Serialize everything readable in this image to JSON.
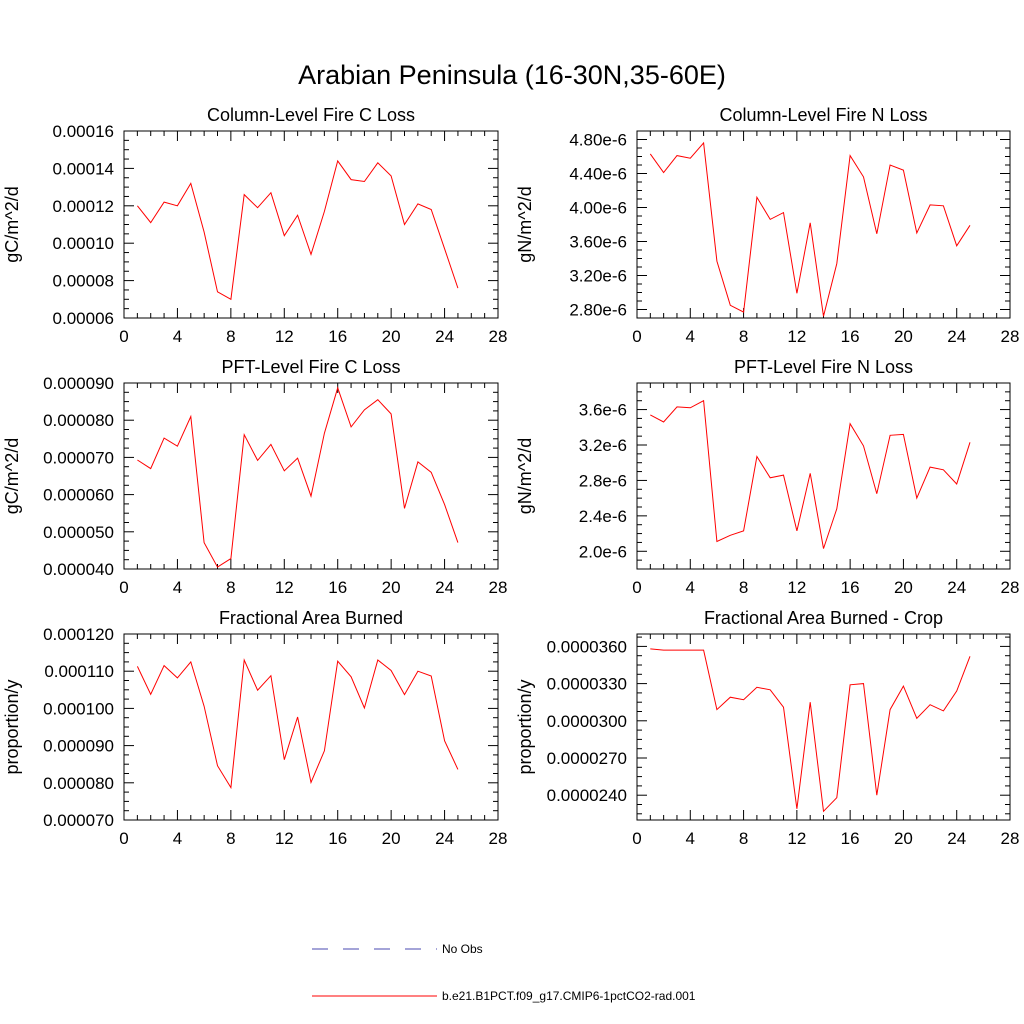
{
  "figure": {
    "title": "Arabian Peninsula (16-30N,35-60E)"
  },
  "colors": {
    "series": "#ff0000",
    "obs": "#4a4ab0",
    "axis": "#000000"
  },
  "legend": {
    "entries": [
      {
        "label": "No Obs",
        "style": "dashed",
        "color": "#4a4ab0"
      },
      {
        "label": "b.e21.B1PCT.f09_g17.CMIP6-1pctCO2-rad.001",
        "style": "solid",
        "color": "#ff0000"
      }
    ]
  },
  "chart_data": [
    {
      "type": "line",
      "title": "Column-Level Fire C Loss",
      "xlabel": "",
      "ylabel": "gC/m^2/d",
      "xlim": [
        0,
        28
      ],
      "ylim": [
        6e-05,
        0.00016
      ],
      "xticks": [
        "0",
        "4",
        "8",
        "12",
        "16",
        "20",
        "24",
        "28"
      ],
      "yticks": [
        "0.00006",
        "0.00008",
        "0.00010",
        "0.00012",
        "0.00014",
        "0.00016"
      ],
      "x": [
        1,
        2,
        3,
        4,
        5,
        6,
        7,
        8,
        9,
        10,
        11,
        12,
        13,
        14,
        15,
        16,
        17,
        18,
        19,
        20,
        21,
        22,
        23,
        24,
        25
      ],
      "series": [
        {
          "name": "b.e21.B1PCT.f09_g17.CMIP6-1pctCO2-rad.001",
          "values": [
            0.00012,
            0.000111,
            0.000122,
            0.00012,
            0.000132,
            0.000106,
            7.4e-05,
            7e-05,
            0.000126,
            0.000119,
            0.000127,
            0.000104,
            0.000115,
            9.4e-05,
            0.000117,
            0.000144,
            0.000134,
            0.000133,
            0.000143,
            0.000136,
            0.00011,
            0.000121,
            0.000118,
            9.7e-05,
            7.6e-05
          ]
        }
      ]
    },
    {
      "type": "line",
      "title": "Column-Level Fire N Loss",
      "xlabel": "",
      "ylabel": "gN/m^2/d",
      "xlim": [
        0,
        28
      ],
      "ylim": [
        2.7e-06,
        4.9e-06
      ],
      "xticks": [
        "0",
        "4",
        "8",
        "12",
        "16",
        "20",
        "24",
        "28"
      ],
      "yticks": [
        "2.80e-6",
        "3.20e-6",
        "3.60e-6",
        "4.00e-6",
        "4.40e-6",
        "4.80e-6"
      ],
      "ytick_values": [
        2.8e-06,
        3.2e-06,
        3.6e-06,
        4e-06,
        4.4e-06,
        4.8e-06
      ],
      "x": [
        1,
        2,
        3,
        4,
        5,
        6,
        7,
        8,
        9,
        10,
        11,
        12,
        13,
        14,
        15,
        16,
        17,
        18,
        19,
        20,
        21,
        22,
        23,
        24,
        25
      ],
      "series": [
        {
          "name": "b.e21.B1PCT.f09_g17.CMIP6-1pctCO2-rad.001",
          "values": [
            4.63e-06,
            4.41e-06,
            4.61e-06,
            4.58e-06,
            4.76e-06,
            3.37e-06,
            2.85e-06,
            2.77e-06,
            4.12e-06,
            3.86e-06,
            3.94e-06,
            2.99e-06,
            3.82e-06,
            2.72e-06,
            3.34e-06,
            4.61e-06,
            4.36e-06,
            3.69e-06,
            4.5e-06,
            4.44e-06,
            3.7e-06,
            4.03e-06,
            4.02e-06,
            3.55e-06,
            3.79e-06
          ]
        }
      ]
    },
    {
      "type": "line",
      "title": "PFT-Level Fire C Loss",
      "xlabel": "",
      "ylabel": "gC/m^2/d",
      "xlim": [
        0,
        28
      ],
      "ylim": [
        4e-05,
        9e-05
      ],
      "xticks": [
        "0",
        "4",
        "8",
        "12",
        "16",
        "20",
        "24",
        "28"
      ],
      "yticks": [
        "0.000040",
        "0.000050",
        "0.000060",
        "0.000070",
        "0.000080",
        "0.000090"
      ],
      "x": [
        1,
        2,
        3,
        4,
        5,
        6,
        7,
        8,
        9,
        10,
        11,
        12,
        13,
        14,
        15,
        16,
        17,
        18,
        19,
        20,
        21,
        22,
        23,
        24,
        25
      ],
      "series": [
        {
          "name": "b.e21.B1PCT.f09_g17.CMIP6-1pctCO2-rad.001",
          "values": [
            6.93e-05,
            6.7e-05,
            7.52e-05,
            7.3e-05,
            8.1e-05,
            4.71e-05,
            4.05e-05,
            4.28e-05,
            7.61e-05,
            6.92e-05,
            7.35e-05,
            6.64e-05,
            6.98e-05,
            5.96e-05,
            7.65e-05,
            8.87e-05,
            7.82e-05,
            8.28e-05,
            8.55e-05,
            8.17e-05,
            5.63e-05,
            6.88e-05,
            6.6e-05,
            5.73e-05,
            4.71e-05
          ]
        }
      ]
    },
    {
      "type": "line",
      "title": "PFT-Level Fire N Loss",
      "xlabel": "",
      "ylabel": "gN/m^2/d",
      "xlim": [
        0,
        28
      ],
      "ylim": [
        1.8e-06,
        3.9e-06
      ],
      "xticks": [
        "0",
        "4",
        "8",
        "12",
        "16",
        "20",
        "24",
        "28"
      ],
      "yticks": [
        "2.0e-6",
        "2.4e-6",
        "2.8e-6",
        "3.2e-6",
        "3.6e-6"
      ],
      "ytick_values": [
        2e-06,
        2.4e-06,
        2.8e-06,
        3.2e-06,
        3.6e-06
      ],
      "x": [
        1,
        2,
        3,
        4,
        5,
        6,
        7,
        8,
        9,
        10,
        11,
        12,
        13,
        14,
        15,
        16,
        17,
        18,
        19,
        20,
        21,
        22,
        23,
        24,
        25
      ],
      "series": [
        {
          "name": "b.e21.B1PCT.f09_g17.CMIP6-1pctCO2-rad.001",
          "values": [
            3.54e-06,
            3.46e-06,
            3.63e-06,
            3.62e-06,
            3.7e-06,
            2.11e-06,
            2.18e-06,
            2.23e-06,
            3.07e-06,
            2.83e-06,
            2.86e-06,
            2.23e-06,
            2.88e-06,
            2.03e-06,
            2.48e-06,
            3.44e-06,
            3.19e-06,
            2.65e-06,
            3.31e-06,
            3.32e-06,
            2.6e-06,
            2.95e-06,
            2.92e-06,
            2.76e-06,
            3.23e-06
          ]
        }
      ]
    },
    {
      "type": "line",
      "title": "Fractional Area Burned",
      "xlabel": "",
      "ylabel": "proportion/y",
      "xlim": [
        0,
        28
      ],
      "ylim": [
        7e-05,
        0.00012
      ],
      "xticks": [
        "0",
        "4",
        "8",
        "12",
        "16",
        "20",
        "24",
        "28"
      ],
      "yticks": [
        "0.000070",
        "0.000080",
        "0.000090",
        "0.000100",
        "0.000110",
        "0.000120"
      ],
      "x": [
        1,
        2,
        3,
        4,
        5,
        6,
        7,
        8,
        9,
        10,
        11,
        12,
        13,
        14,
        15,
        16,
        17,
        18,
        19,
        20,
        21,
        22,
        23,
        24,
        25
      ],
      "series": [
        {
          "name": "b.e21.B1PCT.f09_g17.CMIP6-1pctCO2-rad.001",
          "values": [
            0.0001113,
            0.0001038,
            0.0001115,
            0.0001082,
            0.0001125,
            0.0001006,
            8.46e-05,
            7.87e-05,
            0.000113,
            0.0001049,
            0.0001088,
            8.62e-05,
            9.77e-05,
            8.01e-05,
            8.86e-05,
            0.0001127,
            0.0001085,
            0.0001001,
            0.000113,
            0.0001102,
            0.0001037,
            0.00011,
            0.0001087,
            9.13e-05,
            8.36e-05
          ]
        }
      ]
    },
    {
      "type": "line",
      "title": "Fractional Area Burned - Crop",
      "xlabel": "",
      "ylabel": "proportion/y",
      "xlim": [
        0,
        28
      ],
      "ylim": [
        2.2e-05,
        3.7e-05
      ],
      "xticks": [
        "0",
        "4",
        "8",
        "12",
        "16",
        "20",
        "24",
        "28"
      ],
      "yticks": [
        "0.0000240",
        "0.0000270",
        "0.0000300",
        "0.0000330",
        "0.0000360"
      ],
      "ytick_values": [
        2.4e-05,
        2.7e-05,
        3e-05,
        3.3e-05,
        3.6e-05
      ],
      "x": [
        1,
        2,
        3,
        4,
        5,
        6,
        7,
        8,
        9,
        10,
        11,
        12,
        13,
        14,
        15,
        16,
        17,
        18,
        19,
        20,
        21,
        22,
        23,
        24,
        25
      ],
      "series": [
        {
          "name": "b.e21.B1PCT.f09_g17.CMIP6-1pctCO2-rad.001",
          "values": [
            3.58e-05,
            3.57e-05,
            3.57e-05,
            3.57e-05,
            3.57e-05,
            3.09e-05,
            3.19e-05,
            3.17e-05,
            3.27e-05,
            3.25e-05,
            3.11e-05,
            2.29e-05,
            3.15e-05,
            2.27e-05,
            2.38e-05,
            3.29e-05,
            3.3e-05,
            2.4e-05,
            3.09e-05,
            3.28e-05,
            3.02e-05,
            3.13e-05,
            3.08e-05,
            3.24e-05,
            3.52e-05
          ]
        }
      ]
    }
  ]
}
